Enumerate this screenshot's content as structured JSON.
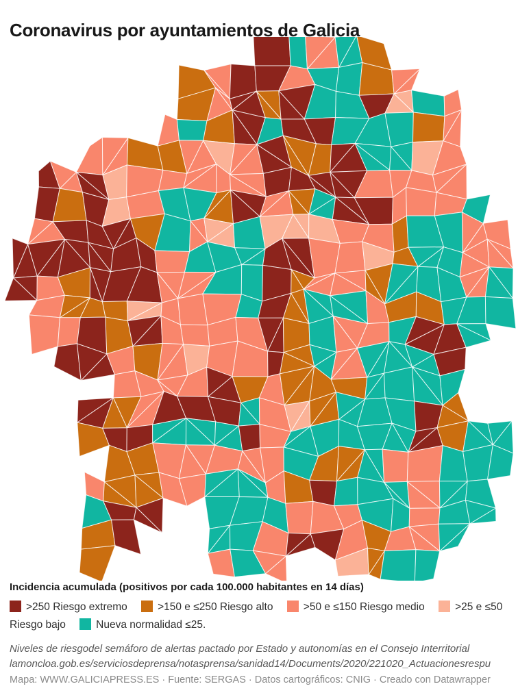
{
  "title": "Coronavirus por ayuntamientos de Galicia",
  "legend": {
    "caption": "Incidencia acumulada (positivos por cada 100.000 habitantes en 14 días)",
    "items": [
      {
        "code": "R",
        "label": ">250 Riesgo extremo",
        "color": "#8c241c"
      },
      {
        "code": "O",
        "label": ">150 e ≤250 Riesgo alto",
        "color": "#ca6e10"
      },
      {
        "code": "S",
        "label": ">50 e ≤150 Riesgo medio",
        "color": "#f9866c"
      },
      {
        "code": "L",
        "label": ">25 e ≤50 Riesgo bajo",
        "color": "#fbb297"
      },
      {
        "code": "T",
        "label": "Nueva normalidad ≤25.",
        "color": "#11b6a1"
      }
    ]
  },
  "map": {
    "region": "Galicia",
    "type": "choropleth",
    "unit": "ayuntamientos",
    "border_color": "#ffffff",
    "classes": {
      "R": "#8c241c",
      "O": "#ca6e10",
      "S": "#f9866c",
      "L": "#fbb297",
      "T": "#11b6a1"
    },
    "class_meaning": {
      "R": ">250 Riesgo extremo",
      "O": ">150 e ≤250 Riesgo alto",
      "S": ">50 e ≤150 Riesgo medio",
      "L": ">25 e ≤50 Riesgo bajo",
      "T": "Nueva normalidad ≤25"
    },
    "grid": [
      "..........RTSTO.....",
      ".......OSRRSTTOS....",
      ".......OSRORTTRLTS..",
      "......STORTRRTTTOS..",
      "...SSOOSLSROORTTLS..",
      ".RSRLSSSSSRRRRSSSS..",
      ".RORLSTTORSOTRRSSST.",
      ".SRRROTSLTLLLSSOTTSS",
      "RRRRRRSTTTRRSSLOTTSS",
      "RSORRRSSTTROSSOTTTST",
      ".SOOOLSSSTROTTSOOTTT",
      ".SSRORSSSSROTSSTRRT.",
      "..RRSOSLSSROTSTTTR..",
      "....SSSSROSOOOTTTT..",
      "...ROSRRRTSLOTTTRO..",
      "...ORRTTTRSTTTTTROTT",
      "....OOSSSSSTOOTSSTTT",
      "...SOOSSTTSORTTTSTT.",
      "...TRR..TTTSSSTTSTT.",
      "...OR...TTSRRSOSST..",
      "...O....STS..LOTT..."
    ]
  },
  "notes": {
    "text": "Niveles de riesgodel semáforo de alertas pactado por Estado y autonomías en el Consejo Interritorial lamoncloa.gob.es/serviciosdeprensa/notasprensa/sanidad14/Documents/2020/221020_Actuacionesrespu"
  },
  "attribution": {
    "text": "Mapa: WWW.GALICIAPRESS.ES · Fuente: SERGAS · Datos cartográficos: CNIG · Creado con Datawrapper"
  }
}
